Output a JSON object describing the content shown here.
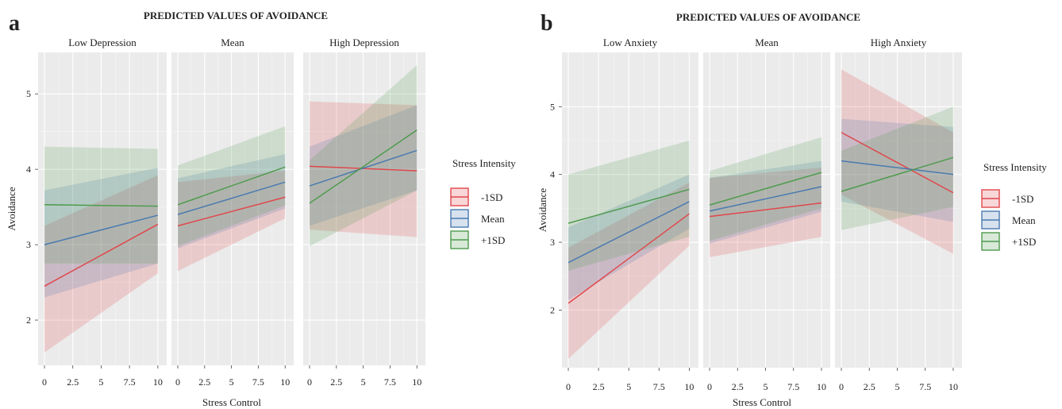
{
  "figure": {
    "legend_title": "Stress Intensity",
    "legend_entries": [
      {
        "label": "-1SD",
        "color": "#e0474c"
      },
      {
        "label": "Mean",
        "color": "#4a7ab0"
      },
      {
        "label": "+1SD",
        "color": "#4e9b4e"
      }
    ]
  },
  "chart_data": [
    {
      "type": "line",
      "tag": "a",
      "title": "PREDICTED VALUES OF AVOIDANCE",
      "xlabel": "Stress Control",
      "ylabel": "Avoidance",
      "xlim": [
        0,
        10.5
      ],
      "ylim": [
        1.4,
        5.55
      ],
      "x_ticks": [
        0,
        2.5,
        5,
        7.5,
        10
      ],
      "x_tick_labels": [
        "0",
        "2.5",
        "5",
        "7.5",
        "10"
      ],
      "y_ticks": [
        2,
        3,
        4,
        5
      ],
      "y_tick_labels": [
        "2",
        "3",
        "4",
        "5"
      ],
      "grid": true,
      "legend_position": "right",
      "facets": [
        {
          "label": "Low Depression",
          "series": [
            {
              "name": "-1SD",
              "x": [
                0,
                10
              ],
              "y": [
                2.45,
                3.27
              ],
              "lower": [
                1.57,
                2.62
              ],
              "upper": [
                3.25,
                3.92
              ]
            },
            {
              "name": "Mean",
              "x": [
                0,
                10
              ],
              "y": [
                3.0,
                3.39
              ],
              "lower": [
                2.3,
                2.75
              ],
              "upper": [
                3.72,
                4.02
              ]
            },
            {
              "name": "+1SD",
              "x": [
                0,
                10
              ],
              "y": [
                3.53,
                3.51
              ],
              "lower": [
                2.75,
                2.75
              ],
              "upper": [
                4.3,
                4.27
              ]
            }
          ]
        },
        {
          "label": "Mean",
          "series": [
            {
              "name": "-1SD",
              "x": [
                0,
                10
              ],
              "y": [
                3.25,
                3.63
              ],
              "lower": [
                2.65,
                3.35
              ],
              "upper": [
                3.83,
                3.98
              ]
            },
            {
              "name": "Mean",
              "x": [
                0,
                10
              ],
              "y": [
                3.4,
                3.83
              ],
              "lower": [
                2.95,
                3.48
              ],
              "upper": [
                3.88,
                4.2
              ]
            },
            {
              "name": "+1SD",
              "x": [
                0,
                10
              ],
              "y": [
                3.53,
                4.03
              ],
              "lower": [
                2.98,
                3.52
              ],
              "upper": [
                4.05,
                4.57
              ]
            }
          ]
        },
        {
          "label": "High Depression",
          "series": [
            {
              "name": "-1SD",
              "x": [
                0,
                10
              ],
              "y": [
                4.04,
                3.98
              ],
              "lower": [
                3.2,
                3.1
              ],
              "upper": [
                4.9,
                4.85
              ]
            },
            {
              "name": "Mean",
              "x": [
                0,
                10
              ],
              "y": [
                3.78,
                4.25
              ],
              "lower": [
                3.25,
                3.72
              ],
              "upper": [
                4.3,
                4.85
              ]
            },
            {
              "name": "+1SD",
              "x": [
                0,
                10
              ],
              "y": [
                3.55,
                4.52
              ],
              "lower": [
                2.98,
                3.72
              ],
              "upper": [
                4.12,
                5.38
              ]
            }
          ]
        }
      ]
    },
    {
      "type": "line",
      "tag": "b",
      "title": "PREDICTED VALUES OF AVOIDANCE",
      "xlabel": "Stress Control",
      "ylabel": "Avoidance",
      "xlim": [
        0,
        10.5
      ],
      "ylim": [
        1.15,
        5.8
      ],
      "x_ticks": [
        0,
        2.5,
        5,
        7.5,
        10
      ],
      "x_tick_labels": [
        "0",
        "2.5",
        "5",
        "7.5",
        "10"
      ],
      "y_ticks": [
        2,
        3,
        4,
        5
      ],
      "y_tick_labels": [
        "2",
        "3",
        "4",
        "5"
      ],
      "grid": true,
      "legend_position": "right",
      "facets": [
        {
          "label": "Low Anxiety",
          "series": [
            {
              "name": "-1SD",
              "x": [
                0,
                10
              ],
              "y": [
                2.1,
                3.42
              ],
              "lower": [
                1.28,
                2.95
              ],
              "upper": [
                2.92,
                3.88
              ]
            },
            {
              "name": "Mean",
              "x": [
                0,
                10
              ],
              "y": [
                2.7,
                3.6
              ],
              "lower": [
                2.15,
                3.2
              ],
              "upper": [
                3.22,
                4.0
              ]
            },
            {
              "name": "+1SD",
              "x": [
                0,
                10
              ],
              "y": [
                3.28,
                3.78
              ],
              "lower": [
                2.58,
                3.08
              ],
              "upper": [
                4.0,
                4.5
              ]
            }
          ]
        },
        {
          "label": "Mean",
          "series": [
            {
              "name": "-1SD",
              "x": [
                0,
                10
              ],
              "y": [
                3.38,
                3.58
              ],
              "lower": [
                2.78,
                3.08
              ],
              "upper": [
                3.95,
                4.1
              ]
            },
            {
              "name": "Mean",
              "x": [
                0,
                10
              ],
              "y": [
                3.46,
                3.82
              ],
              "lower": [
                2.98,
                3.45
              ],
              "upper": [
                3.95,
                4.2
              ]
            },
            {
              "name": "+1SD",
              "x": [
                0,
                10
              ],
              "y": [
                3.55,
                4.03
              ],
              "lower": [
                3.02,
                3.5
              ],
              "upper": [
                4.05,
                4.55
              ]
            }
          ]
        },
        {
          "label": "High Anxiety",
          "series": [
            {
              "name": "-1SD",
              "x": [
                0,
                10
              ],
              "y": [
                4.62,
                3.73
              ],
              "lower": [
                3.7,
                2.83
              ],
              "upper": [
                5.55,
                4.62
              ]
            },
            {
              "name": "Mean",
              "x": [
                0,
                10
              ],
              "y": [
                4.2,
                4.0
              ],
              "lower": [
                3.6,
                3.3
              ],
              "upper": [
                4.82,
                4.7
              ]
            },
            {
              "name": "+1SD",
              "x": [
                0,
                10
              ],
              "y": [
                3.75,
                4.25
              ],
              "lower": [
                3.18,
                3.52
              ],
              "upper": [
                4.35,
                5.0
              ]
            }
          ]
        }
      ]
    }
  ]
}
